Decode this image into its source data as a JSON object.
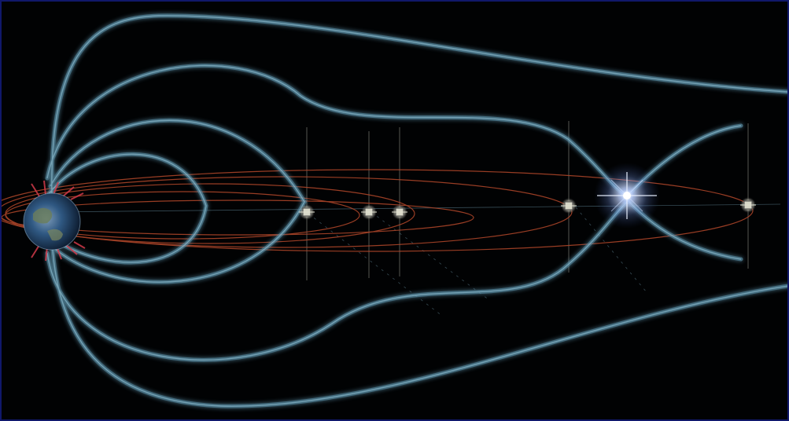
{
  "image": {
    "description_tag": "magnetosphere-illustration"
  },
  "colors": {
    "background": "#010203",
    "border": "#10186a",
    "field_line": "#5a8ea6",
    "field_glow": "#2a5a70",
    "orbit_line": "#b4482a",
    "earth_ocean": "#24476e",
    "earth_land": "#6a7d5a",
    "aurora": "#d23a4a",
    "star_core": "#ffffff",
    "star_glow": "#8fb6ff"
  },
  "icons": {
    "earth": "earth-icon",
    "satellite": "satellite-icon",
    "reconnection_point": "reconnection-flash-icon"
  }
}
